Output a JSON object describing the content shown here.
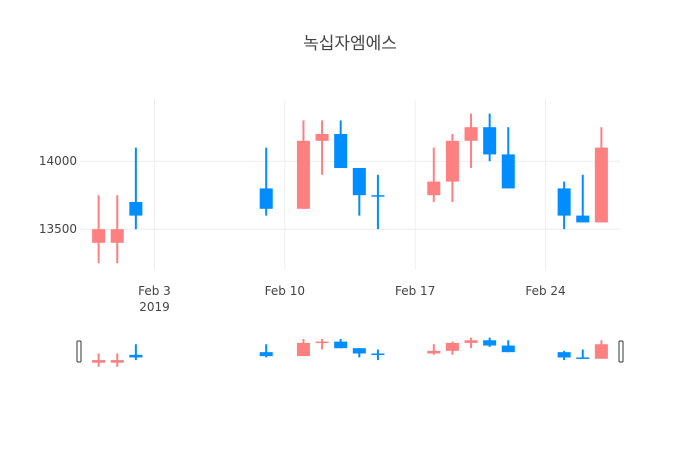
{
  "chart_data": {
    "type": "candlestick",
    "title": "녹십자엠에스",
    "x_ticks": [
      {
        "date": "2019-02-03",
        "label": "Feb 3",
        "sublabel": "2019"
      },
      {
        "date": "2019-02-10",
        "label": "Feb 10",
        "sublabel": ""
      },
      {
        "date": "2019-02-17",
        "label": "Feb 17",
        "sublabel": ""
      },
      {
        "date": "2019-02-24",
        "label": "Feb 24",
        "sublabel": ""
      }
    ],
    "y_ticks": [
      {
        "value": 13500,
        "label": "13500"
      },
      {
        "value": 14000,
        "label": "14000"
      }
    ],
    "xlim": [
      "2019-01-30",
      "2019-02-28"
    ],
    "ylim": [
      13200,
      14450
    ],
    "grid": true,
    "rangeslider": true,
    "colors": {
      "increasing": "#008dff",
      "decreasing": "#ff8080"
    },
    "candles": [
      {
        "date": "2019-01-31",
        "open": 13500,
        "high": 13750,
        "low": 13250,
        "close": 13400
      },
      {
        "date": "2019-02-01",
        "open": 13500,
        "high": 13750,
        "low": 13250,
        "close": 13400
      },
      {
        "date": "2019-02-02",
        "open": 13600,
        "high": 14100,
        "low": 13500,
        "close": 13700
      },
      {
        "date": "2019-02-09",
        "open": 13650,
        "high": 14100,
        "low": 13600,
        "close": 13800
      },
      {
        "date": "2019-02-11",
        "open": 14150,
        "high": 14300,
        "low": 13650,
        "close": 13650
      },
      {
        "date": "2019-02-12",
        "open": 14200,
        "high": 14300,
        "low": 13900,
        "close": 14150
      },
      {
        "date": "2019-02-13",
        "open": 13950,
        "high": 14300,
        "low": 13950,
        "close": 14200
      },
      {
        "date": "2019-02-14",
        "open": 13750,
        "high": 13950,
        "low": 13600,
        "close": 13950
      },
      {
        "date": "2019-02-15",
        "open": 13750,
        "high": 13900,
        "low": 13500,
        "close": 13750
      },
      {
        "date": "2019-02-18",
        "open": 13850,
        "high": 14100,
        "low": 13700,
        "close": 13750
      },
      {
        "date": "2019-02-19",
        "open": 14150,
        "high": 14200,
        "low": 13700,
        "close": 13850
      },
      {
        "date": "2019-02-20",
        "open": 14250,
        "high": 14350,
        "low": 13950,
        "close": 14150
      },
      {
        "date": "2019-02-21",
        "open": 14050,
        "high": 14350,
        "low": 14000,
        "close": 14250
      },
      {
        "date": "2019-02-22",
        "open": 13800,
        "high": 14250,
        "low": 13800,
        "close": 14050
      },
      {
        "date": "2019-02-25",
        "open": 13600,
        "high": 13850,
        "low": 13500,
        "close": 13800
      },
      {
        "date": "2019-02-26",
        "open": 13550,
        "high": 13900,
        "low": 13550,
        "close": 13600
      },
      {
        "date": "2019-02-27",
        "open": 14100,
        "high": 14250,
        "low": 13550,
        "close": 13550
      }
    ]
  }
}
